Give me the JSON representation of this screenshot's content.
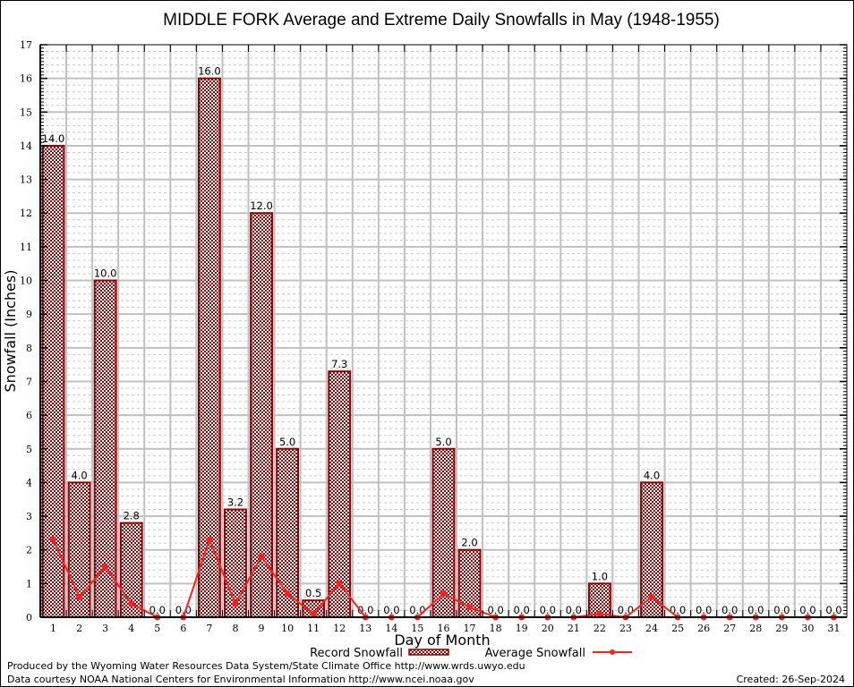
{
  "chart_data": {
    "type": "bar",
    "title": "MIDDLE FORK Average and Extreme Daily Snowfalls in May (1948-1955)",
    "xlabel": "Day of Month",
    "ylabel": "Snowfall (Inches)",
    "ylim": [
      0,
      17
    ],
    "yticks": [
      "0",
      "1",
      "2",
      "3",
      "4",
      "5",
      "6",
      "7",
      "8",
      "9",
      "10",
      "11",
      "12",
      "13",
      "14",
      "15",
      "16",
      "17"
    ],
    "grid": true,
    "categories": [
      "1",
      "2",
      "3",
      "4",
      "5",
      "6",
      "7",
      "8",
      "9",
      "10",
      "11",
      "12",
      "13",
      "14",
      "15",
      "16",
      "17",
      "18",
      "19",
      "20",
      "21",
      "22",
      "23",
      "24",
      "25",
      "26",
      "27",
      "28",
      "29",
      "30",
      "31"
    ],
    "series": [
      {
        "name": "Record Snowfall",
        "type": "bar",
        "color": "#8b0000",
        "values": [
          14.0,
          4.0,
          10.0,
          2.8,
          0.0,
          0.0,
          16.0,
          3.2,
          12.0,
          5.0,
          0.5,
          7.3,
          0.0,
          0.0,
          0.0,
          5.0,
          2.0,
          0.0,
          0.0,
          0.0,
          0.0,
          1.0,
          0.0,
          4.0,
          0.0,
          0.0,
          0.0,
          0.0,
          0.0,
          0.0,
          0.0
        ],
        "labels": [
          "14.0",
          "4.0",
          "10.0",
          "2.8",
          "0.0",
          "0.0",
          "16.0",
          "3.2",
          "12.0",
          "5.0",
          "0.5",
          "7.3",
          "0.0",
          "0.0",
          "0.0",
          "5.0",
          "2.0",
          "0.0",
          "0.0",
          "0.0",
          "0.0",
          "1.0",
          "0.0",
          "4.0",
          "0.0",
          "0.0",
          "0.0",
          "0.0",
          "0.0",
          "0.0",
          "0.0"
        ]
      },
      {
        "name": "Average Snowfall",
        "type": "line",
        "color": "#ff2020",
        "values": [
          2.3,
          0.6,
          1.5,
          0.4,
          0.0,
          0.0,
          2.3,
          0.4,
          1.8,
          0.7,
          0.1,
          1.0,
          0.0,
          0.0,
          0.0,
          0.7,
          0.3,
          0.0,
          0.0,
          0.0,
          0.0,
          0.1,
          0.0,
          0.6,
          0.0,
          0.0,
          0.0,
          0.0,
          0.0,
          0.0,
          0.0
        ]
      }
    ],
    "legend": {
      "placement": "bottom-center",
      "entries": [
        "Record Snowfall",
        "Average Snowfall"
      ]
    }
  },
  "footer": {
    "credit_line1": "Produced by the Wyoming Water Resources Data System/State Climate Office http://www.wrds.uwyo.edu",
    "credit_line2": "Data courtesy NOAA National Centers for Environmental Information http://www.ncei.noaa.gov",
    "created": "Created:  26-Sep-2024"
  },
  "colors": {
    "bar_fill": "#8b0000",
    "bar_stroke": "#8b0000",
    "line": "#ff2020",
    "major_grid": "#c0c0c0",
    "minor_grid": "#c8c8c8"
  }
}
